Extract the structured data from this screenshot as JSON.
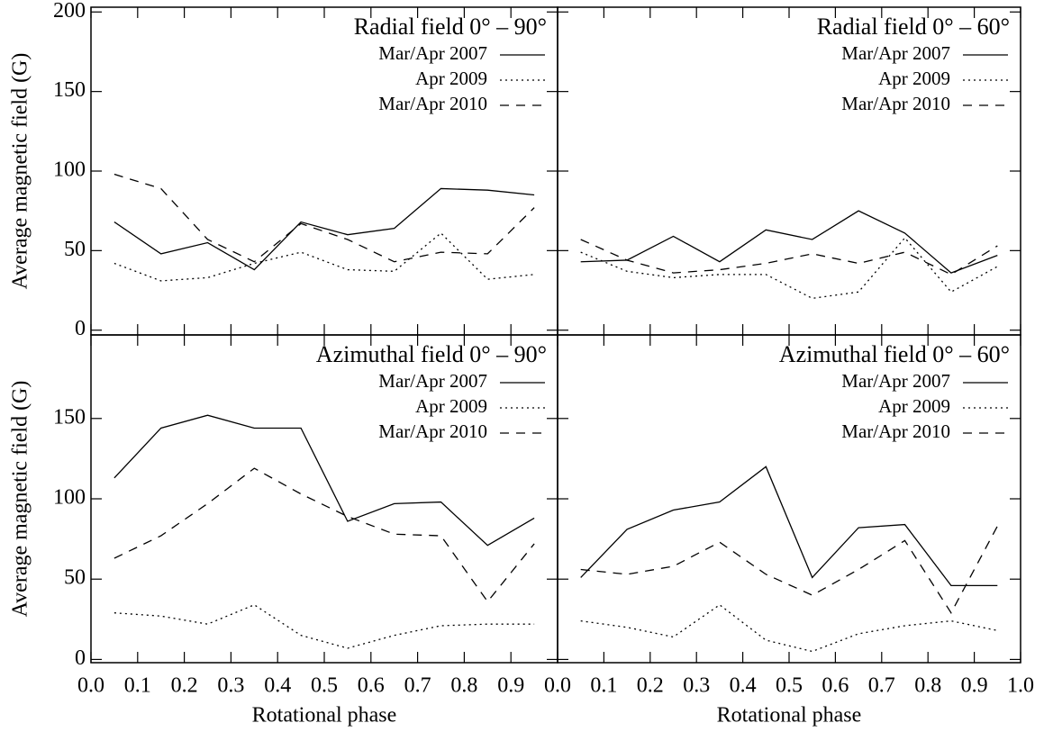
{
  "chart_data": [
    {
      "type": "line",
      "title": "Radial field 0° – 90°",
      "ylabel": "Average magnetic field (G)",
      "x": [
        0.05,
        0.15,
        0.25,
        0.35,
        0.45,
        0.55,
        0.65,
        0.75,
        0.85,
        0.95
      ],
      "series": [
        {
          "name": "Mar/Apr 2007",
          "color": "#000000",
          "linestyle": "solid",
          "values": [
            68,
            48,
            55,
            38,
            68,
            60,
            64,
            89,
            88,
            85
          ]
        },
        {
          "name": "Apr 2009",
          "color": "#000000",
          "linestyle": "dotted",
          "values": [
            42,
            31,
            33,
            42,
            49,
            38,
            37,
            61,
            32,
            35
          ]
        },
        {
          "name": "Mar/Apr 2010",
          "color": "#000000",
          "linestyle": "dashed",
          "values": [
            98,
            89,
            57,
            43,
            67,
            57,
            43,
            49,
            48,
            77
          ]
        }
      ],
      "xlim": [
        0,
        1
      ],
      "ylim": [
        -3,
        203
      ],
      "xticks": [
        0,
        0.1,
        0.2,
        0.3,
        0.4,
        0.5,
        0.6,
        0.7,
        0.8,
        0.9,
        1
      ],
      "yticks": [
        0,
        50,
        100,
        150,
        200
      ]
    },
    {
      "type": "line",
      "title": "Radial field 0° – 60°",
      "x": [
        0.05,
        0.15,
        0.25,
        0.35,
        0.45,
        0.55,
        0.65,
        0.75,
        0.85,
        0.95
      ],
      "series": [
        {
          "name": "Mar/Apr 2007",
          "color": "#000000",
          "linestyle": "solid",
          "values": [
            43,
            44,
            59,
            43,
            63,
            57,
            75,
            61,
            36,
            47
          ]
        },
        {
          "name": "Apr 2009",
          "color": "#000000",
          "linestyle": "dotted",
          "values": [
            49,
            37,
            33,
            35,
            35,
            20,
            24,
            58,
            24,
            40
          ]
        },
        {
          "name": "Mar/Apr 2010",
          "color": "#000000",
          "linestyle": "dashed",
          "values": [
            57,
            44,
            36,
            38,
            42,
            48,
            42,
            49,
            35,
            53
          ]
        }
      ],
      "xlim": [
        0,
        1
      ],
      "ylim": [
        -3,
        203
      ],
      "xticks": [
        0,
        0.1,
        0.2,
        0.3,
        0.4,
        0.5,
        0.6,
        0.7,
        0.8,
        0.9,
        1
      ],
      "yticks": [
        0,
        50,
        100,
        150,
        200
      ]
    },
    {
      "type": "line",
      "title": "Azimuthal field 0° – 90°",
      "ylabel": "Average magnetic field (G)",
      "xlabel": "Rotational phase",
      "x": [
        0.05,
        0.15,
        0.25,
        0.35,
        0.45,
        0.55,
        0.65,
        0.75,
        0.85,
        0.95
      ],
      "series": [
        {
          "name": "Mar/Apr 2007",
          "color": "#000000",
          "linestyle": "solid",
          "values": [
            113,
            144,
            152,
            144,
            144,
            86,
            97,
            98,
            71,
            88
          ]
        },
        {
          "name": "Apr 2009",
          "color": "#000000",
          "linestyle": "dotted",
          "values": [
            29,
            27,
            22,
            34,
            15,
            7,
            15,
            21,
            22,
            22
          ]
        },
        {
          "name": "Mar/Apr 2010",
          "color": "#000000",
          "linestyle": "dashed",
          "values": [
            63,
            77,
            97,
            119,
            103,
            89,
            78,
            77,
            36,
            72
          ]
        }
      ],
      "xlim": [
        0,
        1
      ],
      "ylim": [
        -2,
        202
      ],
      "xticks": [
        {
          "value": 0,
          "label": "0.0"
        },
        0.1,
        0.2,
        0.3,
        0.4,
        0.5,
        0.6,
        0.7,
        0.8,
        0.9
      ],
      "yticks": [
        0,
        50,
        100,
        150
      ]
    },
    {
      "type": "line",
      "title": "Azimuthal field 0° – 60°",
      "xlabel": "Rotational phase",
      "x": [
        0.05,
        0.15,
        0.25,
        0.35,
        0.45,
        0.55,
        0.65,
        0.75,
        0.85,
        0.95
      ],
      "series": [
        {
          "name": "Mar/Apr 2007",
          "color": "#000000",
          "linestyle": "solid",
          "values": [
            51,
            81,
            93,
            98,
            120,
            51,
            82,
            84,
            46,
            46
          ]
        },
        {
          "name": "Apr 2009",
          "color": "#000000",
          "linestyle": "dotted",
          "values": [
            24,
            20,
            14,
            34,
            12,
            5,
            16,
            21,
            24,
            18
          ]
        },
        {
          "name": "Mar/Apr 2010",
          "color": "#000000",
          "linestyle": "dashed",
          "values": [
            56,
            53,
            58,
            73,
            53,
            40,
            56,
            74,
            29,
            83
          ]
        }
      ],
      "xlim": [
        0,
        1
      ],
      "ylim": [
        -2,
        202
      ],
      "xticks": [
        {
          "value": 0,
          "label": "0.0"
        },
        0.1,
        0.2,
        0.3,
        0.4,
        0.5,
        0.6,
        0.7,
        0.8,
        0.9,
        {
          "value": 1,
          "label": "1.0"
        }
      ],
      "yticks": [
        0,
        50,
        100,
        150
      ]
    }
  ]
}
